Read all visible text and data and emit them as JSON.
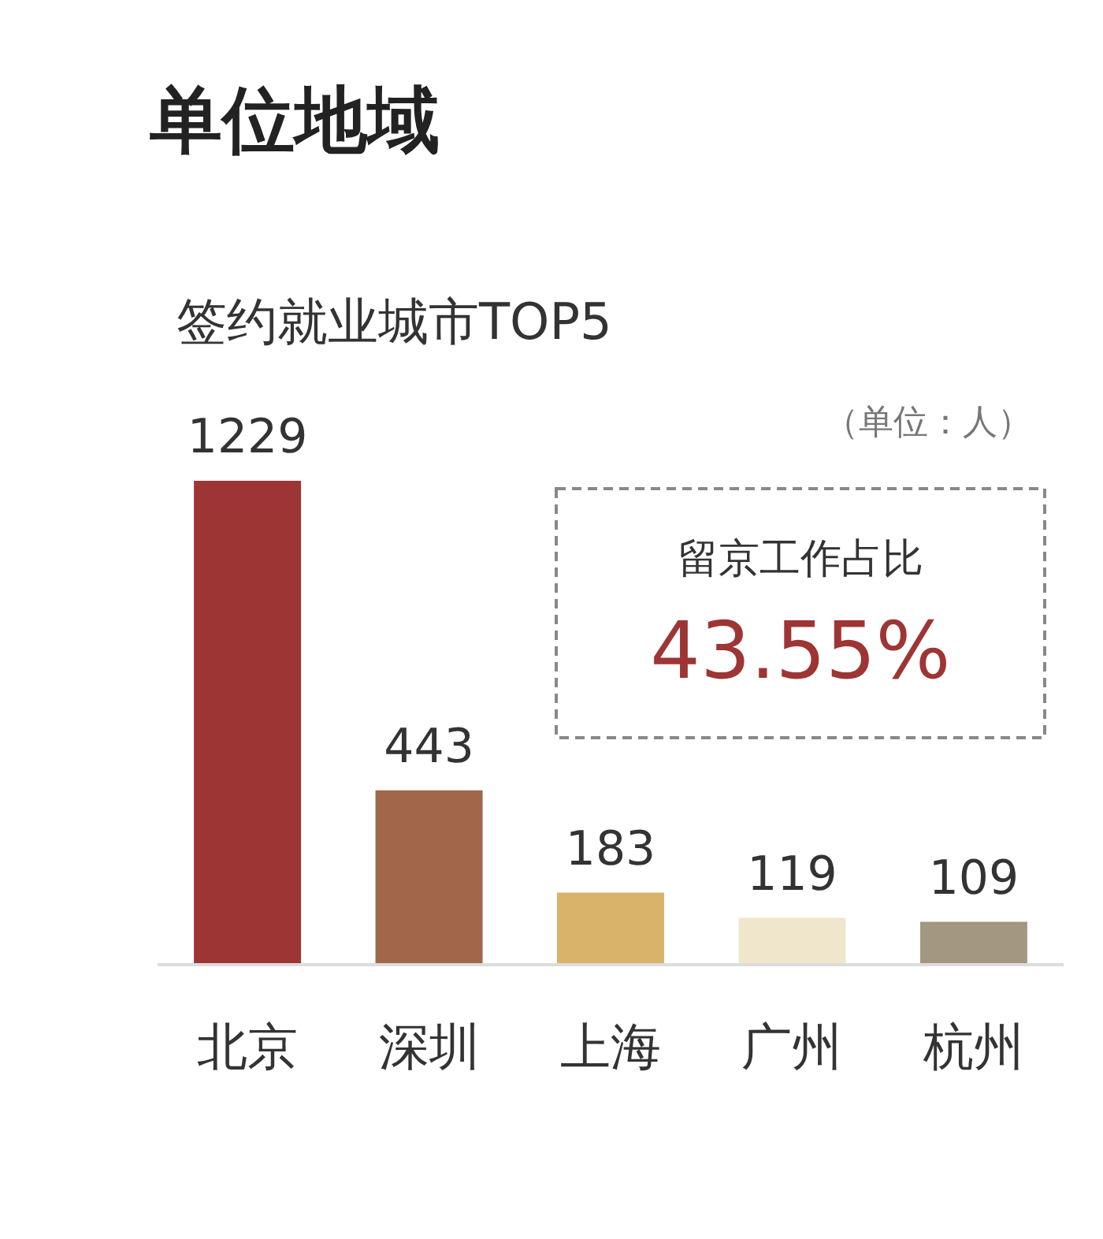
{
  "chart_data": {
    "type": "bar",
    "title": "单位地域",
    "subtitle": "签约就业城市TOP5",
    "categories": [
      "北京",
      "深圳",
      "上海",
      "广州",
      "杭州"
    ],
    "values": [
      1229,
      443,
      183,
      119,
      109
    ],
    "colors": [
      "#9e3535",
      "#a0674a",
      "#d9b36a",
      "#efe6cc",
      "#a39780"
    ],
    "data_labels": true,
    "grid": false,
    "annotations": [
      "（单位：人）",
      "留京工作占比",
      "43.55%"
    ]
  }
}
